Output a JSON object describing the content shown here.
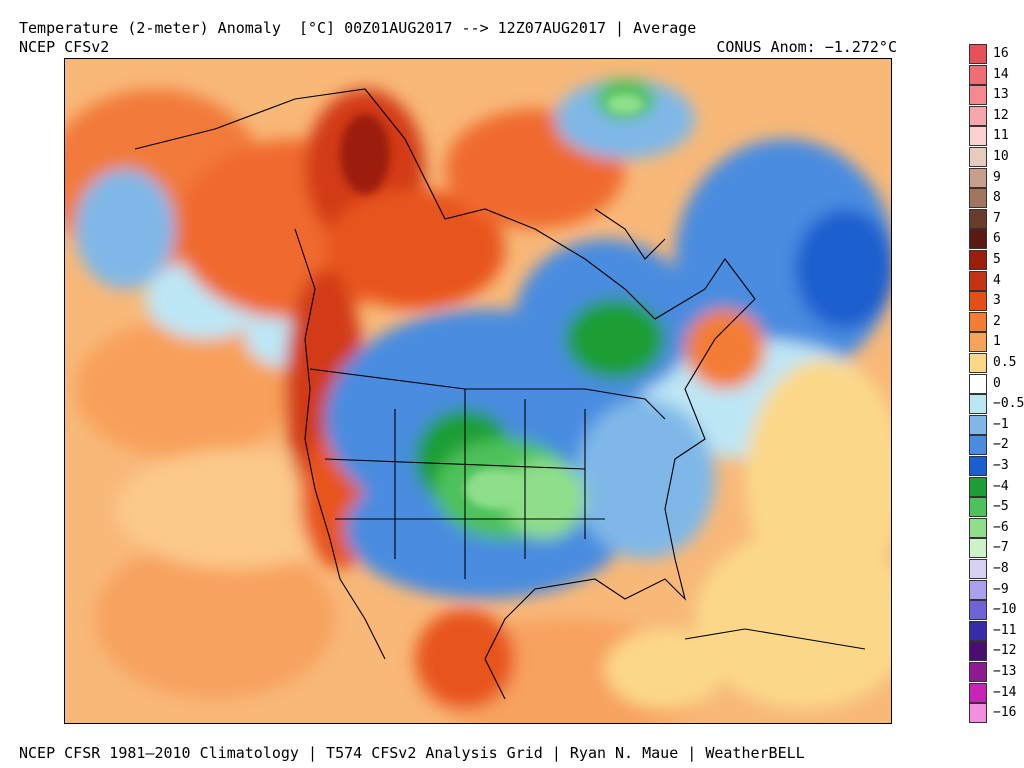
{
  "header": {
    "title": "Temperature (2-meter) Anomaly  [°C] 00Z01AUG2017 --> 12Z07AUG2017 | Average",
    "model": "NCEP CFSv2",
    "conus_anom": "CONUS Anom: −1.272°C"
  },
  "footer": "NCEP CFSR 1981–2010 Climatology | T574 CFSv2 Analysis Grid | Ryan N. Maue | WeatherBELL",
  "legend": [
    {
      "label": "16",
      "color": "#e8515a"
    },
    {
      "label": "14",
      "color": "#ee6e74"
    },
    {
      "label": "13",
      "color": "#f28a8e"
    },
    {
      "label": "12",
      "color": "#f6a7aa"
    },
    {
      "label": "11",
      "color": "#fad1cf"
    },
    {
      "label": "10",
      "color": "#e7cbbf"
    },
    {
      "label": "9",
      "color": "#c99f8b"
    },
    {
      "label": "8",
      "color": "#a37560"
    },
    {
      "label": "7",
      "color": "#6b3c2b"
    },
    {
      "label": "6",
      "color": "#5a1a10"
    },
    {
      "label": "5",
      "color": "#9c1f0e"
    },
    {
      "label": "4",
      "color": "#c43312"
    },
    {
      "label": "3",
      "color": "#e54e17"
    },
    {
      "label": "2",
      "color": "#f47d35"
    },
    {
      "label": "1",
      "color": "#f8a35a"
    },
    {
      "label": "0.5",
      "color": "#fbd889"
    },
    {
      "label": "0",
      "color": "#ffffff"
    },
    {
      "label": "−0.5",
      "color": "#bde6f5"
    },
    {
      "label": "−1",
      "color": "#7fb8e8"
    },
    {
      "label": "−2",
      "color": "#4a8ce0"
    },
    {
      "label": "−3",
      "color": "#1a5fcf"
    },
    {
      "label": "−4",
      "color": "#1e9e36"
    },
    {
      "label": "−5",
      "color": "#4ec25a"
    },
    {
      "label": "−6",
      "color": "#8fdf8a"
    },
    {
      "label": "−7",
      "color": "#cdf2ca"
    },
    {
      "label": "−8",
      "color": "#d6d2f3"
    },
    {
      "label": "−9",
      "color": "#a9a2ea"
    },
    {
      "label": "−10",
      "color": "#6f63d8"
    },
    {
      "label": "−11",
      "color": "#3b2aa8"
    },
    {
      "label": "−12",
      "color": "#4a0f6e"
    },
    {
      "label": "−13",
      "color": "#8c1c8f"
    },
    {
      "label": "−14",
      "color": "#c824b8"
    },
    {
      "label": "−16",
      "color": "#f28fe0"
    }
  ]
}
